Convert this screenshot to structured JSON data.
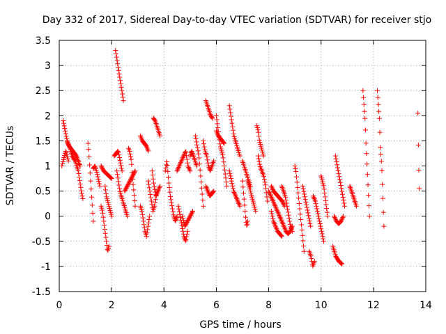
{
  "chart_data": {
    "type": "scatter",
    "title": "Day 332 of 2017, Sidereal Day-to-day VTEC variation (SDTVAR) for receiver stjo",
    "xlabel": "GPS time / hours",
    "ylabel": "SDTVAR / TECUs",
    "xlim": [
      0,
      14
    ],
    "ylim": [
      -1.5,
      3.5
    ],
    "xticks": [
      0,
      2,
      4,
      6,
      8,
      10,
      12,
      14
    ],
    "xtick_labels": [
      "0",
      "2",
      "4",
      "6",
      "8",
      "10",
      "12",
      "14"
    ],
    "yticks": [
      -1.5,
      -1,
      -0.5,
      0,
      0.5,
      1,
      1.5,
      2,
      2.5,
      3,
      3.5
    ],
    "ytick_labels": [
      "-1.5",
      "-1",
      "-0.5",
      "0",
      "0.5",
      "1",
      "1.5",
      "2",
      "2.5",
      "3",
      "3.5"
    ],
    "grid": true,
    "marker": "+",
    "color": "#ff0000",
    "series": [
      {
        "name": "SDTVAR",
        "segments": [
          {
            "x0": 0.15,
            "x1": 0.9,
            "y": [
              1.9,
              1.75,
              1.6,
              1.45,
              1.4,
              1.3,
              1.2,
              1.15,
              1.1,
              1.0,
              0.9,
              0.7,
              0.5,
              0.35
            ]
          },
          {
            "x0": 0.1,
            "x1": 0.35,
            "y": [
              1.0,
              1.1,
              1.2,
              1.3,
              1.2,
              1.1
            ]
          },
          {
            "x0": 0.3,
            "x1": 0.8,
            "y": [
              1.5,
              1.4,
              1.35,
              1.3,
              1.25,
              1.2,
              1.1,
              1.0
            ]
          },
          {
            "x0": 1.1,
            "x1": 1.3,
            "y": [
              1.45,
              1.3,
              1.1,
              0.9,
              0.7,
              0.5,
              0.3,
              0.1,
              -0.1
            ]
          },
          {
            "x0": 1.3,
            "x1": 1.55,
            "y": [
              0.95,
              1.0,
              0.9,
              0.75,
              0.6
            ]
          },
          {
            "x0": 1.6,
            "x1": 1.9,
            "y": [
              0.2,
              0.1,
              -0.1,
              -0.3,
              -0.5,
              -0.7,
              -0.6
            ]
          },
          {
            "x0": 1.6,
            "x1": 2.0,
            "y": [
              1.0,
              0.9,
              0.85,
              0.8,
              0.75
            ]
          },
          {
            "x0": 1.75,
            "x1": 2.0,
            "y": [
              0.6,
              0.4,
              0.3,
              0.2,
              0.1,
              0.0
            ]
          },
          {
            "x0": 2.15,
            "x1": 2.45,
            "y": [
              3.3,
              3.1,
              2.9,
              2.7,
              2.5,
              2.3
            ]
          },
          {
            "x0": 2.1,
            "x1": 2.4,
            "y": [
              1.2,
              1.25,
              1.3,
              1.1,
              0.9
            ]
          },
          {
            "x0": 2.2,
            "x1": 2.6,
            "y": [
              0.9,
              0.7,
              0.5,
              0.4,
              0.3,
              0.2,
              0.1,
              0.0
            ]
          },
          {
            "x0": 2.5,
            "x1": 2.9,
            "y": [
              0.5,
              0.6,
              0.7,
              0.8,
              0.9
            ]
          },
          {
            "x0": 2.65,
            "x1": 2.9,
            "y": [
              1.35,
              1.3,
              1.2,
              1.1,
              0.8,
              0.6,
              0.4,
              0.2
            ]
          },
          {
            "x0": 3.1,
            "x1": 3.4,
            "y": [
              1.6,
              1.5,
              1.45,
              1.4,
              1.3
            ]
          },
          {
            "x0": 3.1,
            "x1": 3.45,
            "y": [
              0.2,
              0.1,
              -0.1,
              -0.3,
              -0.4,
              -0.2,
              0.0
            ]
          },
          {
            "x0": 3.4,
            "x1": 3.7,
            "y": [
              0.7,
              0.5,
              0.3,
              0.1,
              0.2,
              0.4
            ]
          },
          {
            "x0": 3.6,
            "x1": 3.85,
            "y": [
              1.95,
              1.9,
              1.8,
              1.7,
              1.6
            ]
          },
          {
            "x0": 3.55,
            "x1": 3.85,
            "y": [
              0.9,
              0.6,
              0.4,
              0.5,
              0.6
            ]
          },
          {
            "x0": 4.05,
            "x1": 4.5,
            "y": [
              0.9,
              1.1,
              0.7,
              0.4,
              0.2,
              0.0,
              -0.1,
              0.0
            ]
          },
          {
            "x0": 4.55,
            "x1": 4.9,
            "y": [
              0.2,
              0.0,
              -0.2,
              -0.4,
              -0.5,
              -0.3
            ]
          },
          {
            "x0": 4.5,
            "x1": 5.0,
            "y": [
              0.9,
              1.0,
              1.1,
              1.2,
              1.3,
              1.0,
              0.9
            ]
          },
          {
            "x0": 4.7,
            "x1": 5.1,
            "y": [
              0.0,
              -0.2,
              -0.1,
              0.0,
              0.1
            ]
          },
          {
            "x0": 5.0,
            "x1": 5.25,
            "y": [
              1.2,
              1.3,
              1.2,
              1.1,
              1.0
            ]
          },
          {
            "x0": 5.2,
            "x1": 5.5,
            "y": [
              1.6,
              1.5,
              1.4,
              1.3,
              1.2,
              1.0,
              0.8,
              0.6,
              0.4,
              0.2
            ]
          },
          {
            "x0": 5.6,
            "x1": 5.85,
            "y": [
              2.3,
              2.2,
              2.1,
              2.0,
              1.95
            ]
          },
          {
            "x0": 5.5,
            "x1": 5.9,
            "y": [
              1.5,
              1.3,
              1.2,
              1.0,
              0.9,
              1.0,
              1.1
            ]
          },
          {
            "x0": 5.6,
            "x1": 5.9,
            "y": [
              0.6,
              0.5,
              0.4,
              0.45,
              0.5
            ]
          },
          {
            "x0": 6.0,
            "x1": 6.4,
            "y": [
              2.0,
              1.8,
              1.6,
              1.4,
              1.3,
              1.2,
              1.0,
              0.8,
              0.6
            ]
          },
          {
            "x0": 6.0,
            "x1": 6.3,
            "y": [
              1.7,
              1.6,
              1.55,
              1.5,
              1.45
            ]
          },
          {
            "x0": 6.5,
            "x1": 6.9,
            "y": [
              2.2,
              2.0,
              1.8,
              1.6,
              1.5,
              1.4,
              1.3,
              1.2
            ]
          },
          {
            "x0": 6.5,
            "x1": 6.9,
            "y": [
              0.9,
              0.7,
              0.5,
              0.4,
              0.3,
              0.2
            ]
          },
          {
            "x0": 7.0,
            "x1": 7.2,
            "y": [
              0.7,
              0.5,
              0.3,
              0.1,
              -0.1,
              -0.2,
              -0.1
            ]
          },
          {
            "x0": 7.0,
            "x1": 7.3,
            "y": [
              1.1,
              1.0,
              0.9,
              0.8,
              0.7,
              0.6
            ]
          },
          {
            "x0": 7.2,
            "x1": 7.5,
            "y": [
              0.7,
              0.5,
              0.3,
              0.1
            ]
          },
          {
            "x0": 7.55,
            "x1": 7.8,
            "y": [
              1.8,
              1.7,
              1.5,
              1.4,
              1.3,
              1.2
            ]
          },
          {
            "x0": 7.6,
            "x1": 7.95,
            "y": [
              1.2,
              1.0,
              0.9,
              0.8,
              0.6,
              0.3
            ]
          },
          {
            "x0": 8.0,
            "x1": 8.5,
            "y": [
              0.5,
              0.4,
              0.3,
              0.2,
              0.1,
              0.0,
              -0.1
            ]
          },
          {
            "x0": 8.1,
            "x1": 8.6,
            "y": [
              0.6,
              0.5,
              0.45,
              0.4,
              0.35,
              0.3,
              0.2
            ]
          },
          {
            "x0": 8.1,
            "x1": 8.5,
            "y": [
              0.1,
              -0.1,
              -0.2,
              -0.3,
              -0.35,
              -0.4
            ]
          },
          {
            "x0": 8.5,
            "x1": 8.9,
            "y": [
              0.6,
              0.5,
              0.4,
              0.2,
              0.0,
              -0.2,
              -0.3
            ]
          },
          {
            "x0": 8.5,
            "x1": 8.9,
            "y": [
              -0.1,
              -0.2,
              -0.3,
              -0.35,
              -0.3,
              -0.2
            ]
          },
          {
            "x0": 9.0,
            "x1": 9.35,
            "y": [
              1.0,
              0.9,
              0.7,
              0.5,
              0.3,
              0.1,
              -0.1,
              -0.3,
              -0.5,
              -0.7
            ]
          },
          {
            "x0": 9.3,
            "x1": 9.6,
            "y": [
              0.6,
              0.4,
              0.2,
              0.0,
              -0.2
            ]
          },
          {
            "x0": 9.55,
            "x1": 9.75,
            "y": [
              -0.7,
              -0.8,
              -1.0,
              -0.9
            ]
          },
          {
            "x0": 9.7,
            "x1": 10.1,
            "y": [
              0.4,
              0.3,
              0.1,
              -0.1,
              -0.3,
              -0.5
            ]
          },
          {
            "x0": 10.0,
            "x1": 10.25,
            "y": [
              0.8,
              0.7,
              0.6,
              0.4,
              0.2,
              0.0
            ]
          },
          {
            "x0": 10.45,
            "x1": 10.8,
            "y": [
              -0.6,
              -0.8,
              -0.9,
              -0.95
            ]
          },
          {
            "x0": 10.5,
            "x1": 10.85,
            "y": [
              0.0,
              -0.1,
              -0.15,
              -0.1,
              0.0
            ]
          },
          {
            "x0": 10.55,
            "x1": 10.9,
            "y": [
              1.2,
              1.0,
              0.8,
              0.6,
              0.4,
              0.2
            ]
          },
          {
            "x0": 11.1,
            "x1": 11.35,
            "y": [
              0.6,
              0.5,
              0.4,
              0.3,
              0.2
            ]
          },
          {
            "x0": 11.6,
            "x1": 11.85,
            "y": [
              2.5,
              2.3,
              2.1,
              1.9,
              1.5,
              1.2,
              0.9,
              0.6,
              0.3,
              0.0
            ]
          },
          {
            "x0": 12.15,
            "x1": 12.4,
            "y": [
              2.5,
              2.3,
              2.1,
              1.9,
              1.4,
              1.2,
              1.0,
              0.6,
              0.2,
              -0.2
            ]
          },
          {
            "x0": 13.7,
            "x1": 13.75,
            "y": [
              2.05,
              1.1,
              0.55
            ]
          }
        ]
      }
    ]
  }
}
